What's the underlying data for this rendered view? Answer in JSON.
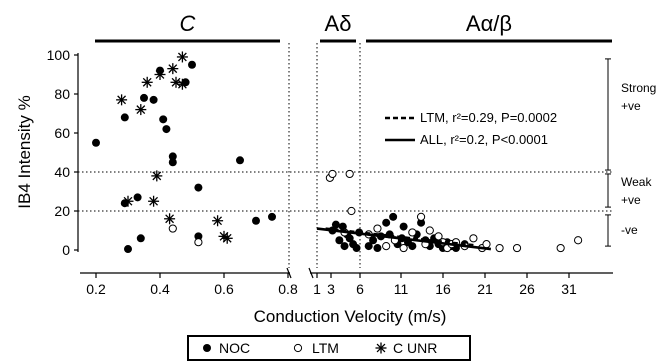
{
  "chart_data": {
    "type": "scatter",
    "ylabel": "IB4 Intensity %",
    "xlabel": "Conduction Velocity (m/s)",
    "ylim": [
      0,
      100
    ],
    "yticks": [
      "0",
      "20",
      "40",
      "60",
      "80",
      "100"
    ],
    "grid": false,
    "panels": [
      {
        "label": "C",
        "xlim": [
          0.2,
          0.8
        ],
        "xticks": [
          "0.2",
          "0.4",
          "0.6",
          "0.8"
        ]
      },
      {
        "label": "Aδ",
        "xlim": [
          1,
          6
        ],
        "xticks": [
          "1",
          "3",
          "6"
        ]
      },
      {
        "label": "Aα/β",
        "xlim": [
          6,
          35
        ],
        "xticks": [
          "11",
          "16",
          "21",
          "26",
          "31"
        ]
      }
    ],
    "thresholds": [
      20,
      40
    ],
    "bands": [
      {
        "label_top": "Strong",
        "label_bottom": "+ve"
      },
      {
        "label_top": "Weak",
        "label_bottom": "+ve"
      },
      {
        "label_top": "-ve",
        "label_bottom": ""
      }
    ],
    "series": [
      {
        "name": "NOC",
        "marker": "filled-circle",
        "points": [
          [
            0.2,
            55
          ],
          [
            0.29,
            68
          ],
          [
            0.3,
            0.5
          ],
          [
            0.34,
            6
          ],
          [
            0.33,
            27
          ],
          [
            0.35,
            78
          ],
          [
            0.38,
            77
          ],
          [
            0.4,
            92
          ],
          [
            0.41,
            67
          ],
          [
            0.42,
            62
          ],
          [
            0.44,
            48
          ],
          [
            0.44,
            45
          ],
          [
            0.52,
            32
          ],
          [
            0.48,
            86
          ],
          [
            0.5,
            95
          ],
          [
            0.52,
            7
          ],
          [
            0.65,
            46
          ],
          [
            0.7,
            15
          ],
          [
            0.75,
            17
          ],
          [
            0.29,
            24
          ],
          [
            2.8,
            10
          ],
          [
            3.2,
            13
          ],
          [
            3.6,
            5
          ],
          [
            4,
            12
          ],
          [
            4.2,
            2
          ],
          [
            4.5,
            8
          ],
          [
            4.8,
            6
          ],
          [
            5.2,
            3
          ],
          [
            5.6,
            1
          ],
          [
            5.9,
            9
          ],
          [
            7,
            2
          ],
          [
            7.5,
            5
          ],
          [
            8,
            1
          ],
          [
            8.4,
            7
          ],
          [
            9,
            14
          ],
          [
            9.4,
            8
          ],
          [
            9.8,
            17
          ],
          [
            10.3,
            3
          ],
          [
            10.8,
            6
          ],
          [
            11,
            12
          ],
          [
            11.5,
            4
          ],
          [
            12,
            2
          ],
          [
            12.5,
            8
          ],
          [
            13,
            14
          ],
          [
            13.5,
            5
          ],
          [
            14,
            2
          ],
          [
            14.5,
            6
          ],
          [
            15,
            3
          ],
          [
            15.5,
            1
          ],
          [
            16,
            4
          ],
          [
            16.5,
            2
          ],
          [
            17,
            1
          ],
          [
            18,
            3
          ]
        ]
      },
      {
        "name": "LTM",
        "marker": "open-circle",
        "points": [
          [
            0.44,
            11
          ],
          [
            0.52,
            4
          ],
          [
            2.5,
            37
          ],
          [
            2.8,
            39
          ],
          [
            4.8,
            39
          ],
          [
            5.0,
            20
          ],
          [
            4.2,
            9
          ],
          [
            7,
            8
          ],
          [
            8,
            11
          ],
          [
            9,
            2
          ],
          [
            10,
            5
          ],
          [
            11,
            1
          ],
          [
            12,
            9
          ],
          [
            13,
            17
          ],
          [
            13.5,
            3
          ],
          [
            14,
            10
          ],
          [
            15,
            7
          ],
          [
            15.5,
            4
          ],
          [
            16,
            1
          ],
          [
            16.5,
            3
          ],
          [
            17,
            4
          ],
          [
            18,
            2
          ],
          [
            19,
            6
          ],
          [
            20,
            1
          ],
          [
            20.5,
            3
          ],
          [
            22,
            1
          ],
          [
            24,
            1
          ],
          [
            29,
            1
          ],
          [
            31,
            5
          ]
        ]
      },
      {
        "name": "C UNR",
        "marker": "asterisk",
        "points": [
          [
            0.28,
            77
          ],
          [
            0.34,
            72
          ],
          [
            0.36,
            86
          ],
          [
            0.4,
            90
          ],
          [
            0.44,
            93
          ],
          [
            0.45,
            86
          ],
          [
            0.47,
            85
          ],
          [
            0.47,
            99
          ],
          [
            0.39,
            38
          ],
          [
            0.38,
            25
          ],
          [
            0.3,
            25
          ],
          [
            0.43,
            16
          ],
          [
            0.58,
            15
          ],
          [
            0.6,
            7
          ],
          [
            0.61,
            6
          ]
        ]
      }
    ],
    "fits": [
      {
        "name": "LTM",
        "label": "LTM, r²=0.29, P=0.0002",
        "style": "dashed",
        "x": [
          2,
          19
        ],
        "y": [
          11,
          2.5
        ]
      },
      {
        "name": "ALL",
        "label": "ALL, r²=0.2, P<0.0001",
        "style": "solid",
        "x": [
          1,
          21
        ],
        "y": [
          11,
          0.5
        ]
      }
    ],
    "legend_position": "bottom"
  }
}
